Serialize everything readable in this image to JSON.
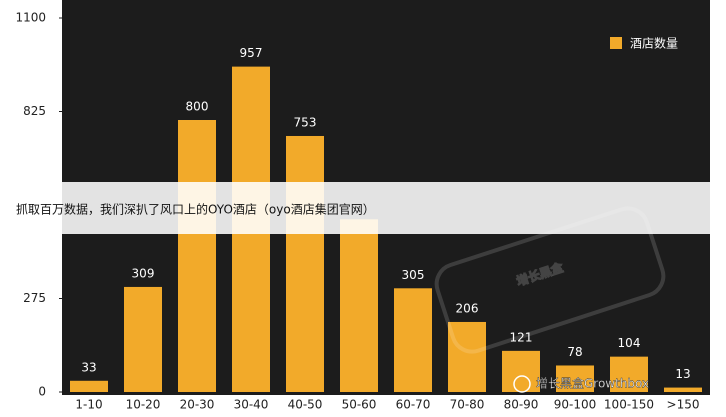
{
  "chart_data": {
    "type": "bar",
    "categories": [
      "1-10",
      "10-20",
      "20-30",
      "30-40",
      "40-50",
      "50-60",
      "60-70",
      "70-80",
      "80-90",
      "90-100",
      "100-150",
      ">150"
    ],
    "series": [
      {
        "name": "酒店数量",
        "color": "#f2aa2a",
        "values": [
          33,
          309,
          800,
          957,
          753,
          508,
          305,
          206,
          121,
          78,
          104,
          13
        ]
      }
    ],
    "ylim": [
      0,
      1100
    ],
    "yticks": [
      0,
      275,
      825,
      1100
    ],
    "legend": "top-right",
    "value_labels": [
      "33",
      "309",
      "800",
      "957",
      "753",
      null,
      "305",
      "206",
      "121",
      "78",
      "104",
      "13"
    ]
  },
  "banner": {
    "text": "抓取百万数据，我们深扒了风口上的OYO酒店（oyo酒店集团官网）"
  },
  "watermark": {
    "text": "增长黑盒Growthbox",
    "stamp": "增长黑盒"
  }
}
